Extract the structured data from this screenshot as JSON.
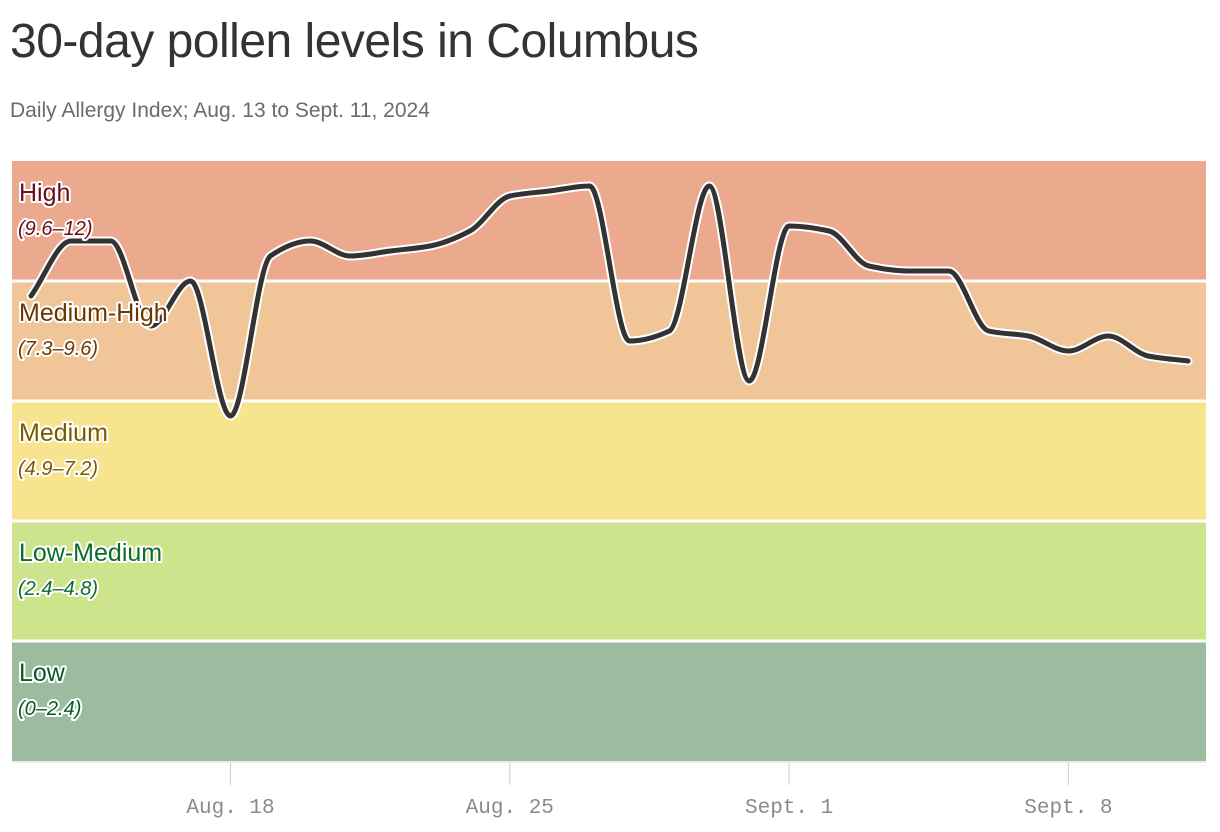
{
  "title": "30-day pollen levels in Columbus",
  "subtitle": "Daily Allergy Index; Aug. 13 to Sept. 11, 2024",
  "chart_data": {
    "type": "line",
    "title": "30-day pollen levels in Columbus",
    "subtitle": "Daily Allergy Index; Aug. 13 to Sept. 11, 2024",
    "xlabel": "",
    "ylabel": "",
    "ylim": [
      0,
      12
    ],
    "xlim": [
      "2024-08-13",
      "2024-09-11"
    ],
    "grid": false,
    "line_color": "#333333",
    "bands": [
      {
        "label": "High",
        "range_label": "(9.6–12)",
        "min": 9.6,
        "max": 12,
        "fill": "#eba98e",
        "text_color": "#6b0d1b"
      },
      {
        "label": "Medium-High",
        "range_label": "(7.3–9.6)",
        "min": 7.2,
        "max": 9.6,
        "fill": "#f0c597",
        "text_color": "#6b3800"
      },
      {
        "label": "Medium",
        "range_label": "(4.9–7.2)",
        "min": 4.8,
        "max": 7.2,
        "fill": "#f8e48f",
        "text_color": "#7a5a00"
      },
      {
        "label": "Low-Medium",
        "range_label": "(2.4–4.8)",
        "min": 2.4,
        "max": 4.8,
        "fill": "#cde38c",
        "text_color": "#0c6b2f"
      },
      {
        "label": "Low",
        "range_label": "(0–2.4)",
        "min": 0,
        "max": 2.4,
        "fill": "#9dbb9e",
        "text_color": "#0a5a28"
      }
    ],
    "x_ticks": [
      {
        "date": "2024-08-18",
        "label": "Aug. 18"
      },
      {
        "date": "2024-08-25",
        "label": "Aug. 25"
      },
      {
        "date": "2024-09-01",
        "label": "Sept. 1"
      },
      {
        "date": "2024-09-08",
        "label": "Sept. 8"
      }
    ],
    "series": [
      {
        "dates": [
          "2024-08-13",
          "2024-08-14",
          "2024-08-15",
          "2024-08-16",
          "2024-08-17",
          "2024-08-18",
          "2024-08-19",
          "2024-08-20",
          "2024-08-21",
          "2024-08-22",
          "2024-08-23",
          "2024-08-24",
          "2024-08-25",
          "2024-08-26",
          "2024-08-27",
          "2024-08-28",
          "2024-08-29",
          "2024-08-30",
          "2024-08-31",
          "2024-09-01",
          "2024-09-02",
          "2024-09-03",
          "2024-09-04",
          "2024-09-05",
          "2024-09-06",
          "2024-09-07",
          "2024-09-08",
          "2024-09-09",
          "2024-09-10",
          "2024-09-11"
        ],
        "values": [
          9.3,
          10.4,
          10.4,
          8.7,
          9.6,
          6.9,
          10.1,
          10.4,
          10.1,
          10.2,
          10.3,
          10.6,
          11.3,
          11.4,
          11.5,
          8.4,
          8.6,
          11.5,
          7.6,
          10.7,
          10.6,
          9.9,
          9.8,
          9.8,
          8.6,
          8.5,
          8.2,
          8.5,
          8.1,
          8.0
        ]
      }
    ]
  }
}
